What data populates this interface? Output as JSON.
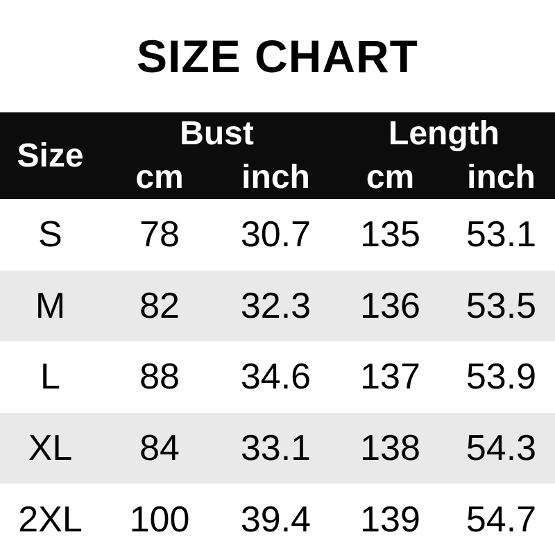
{
  "title": "SIZE CHART",
  "header": {
    "size_label": "Size",
    "groups": [
      {
        "label": "Bust",
        "units": [
          "cm",
          "inch"
        ]
      },
      {
        "label": "Length",
        "units": [
          "cm",
          "inch"
        ]
      }
    ]
  },
  "rows": [
    {
      "size": "S",
      "bust_cm": "78",
      "bust_inch": "30.7",
      "length_cm": "135",
      "length_inch": "53.1"
    },
    {
      "size": "M",
      "bust_cm": "82",
      "bust_inch": "32.3",
      "length_cm": "136",
      "length_inch": "53.5"
    },
    {
      "size": "L",
      "bust_cm": "88",
      "bust_inch": "34.6",
      "length_cm": "137",
      "length_inch": "53.9"
    },
    {
      "size": "XL",
      "bust_cm": "84",
      "bust_inch": "33.1",
      "length_cm": "138",
      "length_inch": "54.3"
    },
    {
      "size": "2XL",
      "bust_cm": "100",
      "bust_inch": "39.4",
      "length_cm": "139",
      "length_inch": "54.7"
    }
  ],
  "colors": {
    "header_bg": "#0c0c0c",
    "header_text": "#ffffff",
    "row_alt_bg": "#e9e9e9",
    "body_bg": "#ffffff",
    "text": "#000000"
  },
  "chart_data": {
    "type": "table",
    "title": "SIZE CHART",
    "columns": [
      "Size",
      "Bust cm",
      "Bust inch",
      "Length cm",
      "Length inch"
    ],
    "rows": [
      [
        "S",
        78,
        30.7,
        135,
        53.1
      ],
      [
        "M",
        82,
        32.3,
        136,
        53.5
      ],
      [
        "L",
        88,
        34.6,
        137,
        53.9
      ],
      [
        "XL",
        84,
        33.1,
        138,
        54.3
      ],
      [
        "2XL",
        100,
        39.4,
        139,
        54.7
      ]
    ],
    "layout_hints": {
      "header_style": "black background, white bold text, two-tier (group labels over cm/inch units)",
      "row_striping": "white / light gray alternating starting with white"
    }
  }
}
